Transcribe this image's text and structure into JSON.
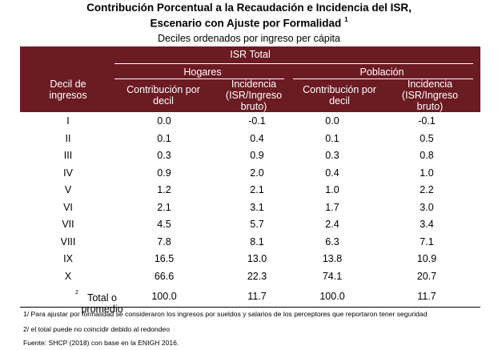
{
  "title_line1": "Contribución Porcentual a la Recaudación e Incidencia del ISR,",
  "title_line2": "Escenario con Ajuste por Formalidad",
  "title_note_mark": "1",
  "subtitle": "Deciles ordenados por ingreso per cápita",
  "header": {
    "isr_total": "ISR Total",
    "hogares": "Hogares",
    "poblacion": "Población",
    "decil_line1": "Decil de",
    "decil_line2": "ingresos",
    "contrib_line1": "Contribución por",
    "contrib_line2": "decil",
    "incid_line1": "Incidencia",
    "incid_line2": "(ISR/Ingreso",
    "incid_line3": "bruto)"
  },
  "rows": [
    {
      "decil": "I",
      "h_contrib": "0.0",
      "h_incid": "-0.1",
      "p_contrib": "0.0",
      "p_incid": "-0.1"
    },
    {
      "decil": "II",
      "h_contrib": "0.1",
      "h_incid": "0.4",
      "p_contrib": "0.1",
      "p_incid": "0.5"
    },
    {
      "decil": "III",
      "h_contrib": "0.3",
      "h_incid": "0.9",
      "p_contrib": "0.3",
      "p_incid": "0.8"
    },
    {
      "decil": "IV",
      "h_contrib": "0.9",
      "h_incid": "2.0",
      "p_contrib": "0.4",
      "p_incid": "1.0"
    },
    {
      "decil": "V",
      "h_contrib": "1.2",
      "h_incid": "2.1",
      "p_contrib": "1.0",
      "p_incid": "2.2"
    },
    {
      "decil": "VI",
      "h_contrib": "2.1",
      "h_incid": "3.1",
      "p_contrib": "1.7",
      "p_incid": "3.0"
    },
    {
      "decil": "VII",
      "h_contrib": "4.5",
      "h_incid": "5.7",
      "p_contrib": "2.4",
      "p_incid": "3.4"
    },
    {
      "decil": "VIII",
      "h_contrib": "7.8",
      "h_incid": "8.1",
      "p_contrib": "6.3",
      "p_incid": "7.1"
    },
    {
      "decil": "IX",
      "h_contrib": "16.5",
      "h_incid": "13.0",
      "p_contrib": "13.8",
      "p_incid": "10.9"
    },
    {
      "decil": "X",
      "h_contrib": "66.6",
      "h_incid": "22.3",
      "p_contrib": "74.1",
      "p_incid": "20.7"
    }
  ],
  "total": {
    "label": "Total  o promedio",
    "mark": "2",
    "h_contrib": "100.0",
    "h_incid": "11.7",
    "p_contrib": "100.0",
    "p_incid": "11.7"
  },
  "notes": {
    "note1": "1/ Para ajustar por formalidad se consideraron los ingresos por sueldos y salarios de los perceptores que reportaron tener seguridad",
    "note2": "2/ el total puede no coincidir debido al redondeo",
    "source": "Fuente: SHCP (2018) con base en la ENIGH 2016."
  },
  "colors": {
    "header_bg": "#6b1b22"
  }
}
